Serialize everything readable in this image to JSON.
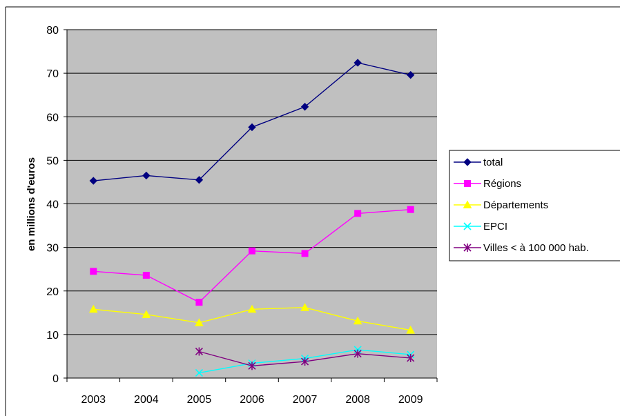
{
  "chart_data": {
    "type": "line",
    "categories": [
      "2003",
      "2004",
      "2005",
      "2006",
      "2007",
      "2008",
      "2009"
    ],
    "ylabel": "en millions d'euros",
    "ylim": [
      0,
      80
    ],
    "yticks": [
      0,
      10,
      20,
      30,
      40,
      50,
      60,
      70,
      80
    ],
    "grid": true,
    "plot_background": "#c0c0c0",
    "legend_position": "right",
    "series": [
      {
        "name": "total",
        "color": "#000080",
        "marker": "diamond",
        "values": [
          45.3,
          46.5,
          45.5,
          57.6,
          62.3,
          72.4,
          69.6
        ]
      },
      {
        "name": "Régions",
        "color": "#ff00ff",
        "marker": "square",
        "values": [
          24.5,
          23.6,
          17.4,
          29.2,
          28.6,
          37.8,
          38.7
        ]
      },
      {
        "name": "Départements",
        "color": "#ffff00",
        "marker": "triangle",
        "values": [
          15.8,
          14.6,
          12.7,
          15.8,
          16.2,
          13.1,
          11.0
        ]
      },
      {
        "name": "EPCI",
        "color": "#00ffff",
        "marker": "x",
        "values": [
          null,
          null,
          1.2,
          3.4,
          4.5,
          6.5,
          5.4
        ]
      },
      {
        "name": "Villes < à 100 000 hab.",
        "color": "#800080",
        "marker": "star",
        "values": [
          null,
          null,
          6.1,
          2.8,
          3.8,
          5.6,
          4.6
        ]
      }
    ]
  }
}
